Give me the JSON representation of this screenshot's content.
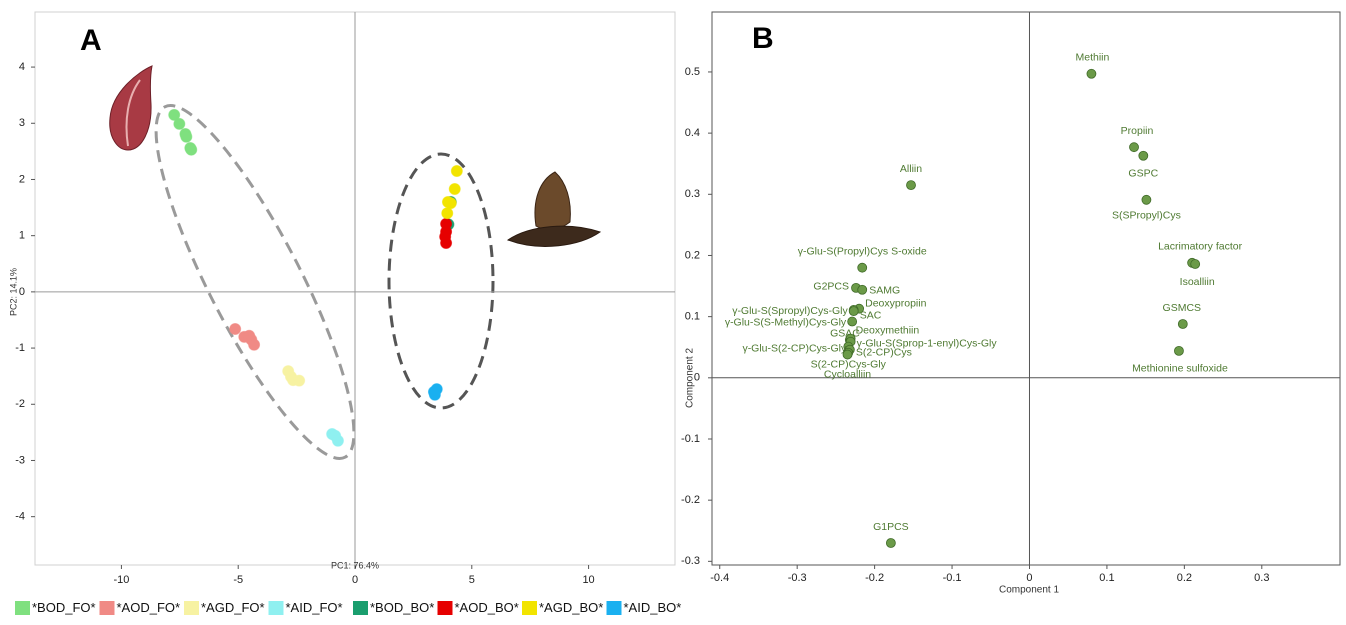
{
  "chart_data": [
    {
      "type": "scatter",
      "panel_label": "A",
      "x_label": "PC1: 76.4%",
      "y_label": "PC2: 14.1%",
      "xlim": [
        -13.7,
        13.7
      ],
      "ylim": [
        -4.86,
        4.98
      ],
      "xticks": [
        -10,
        -5,
        0,
        5,
        10
      ],
      "yticks": [
        -4,
        -3,
        -2,
        -1,
        0,
        1,
        2,
        3,
        4
      ],
      "zero_lines": true,
      "series": [
        {
          "name": "*BOD_FO*",
          "color": "#7fe07f",
          "x": [
            -7.74,
            -7.52,
            -7.26,
            -7.22,
            -7.05,
            -7.01
          ],
          "y": [
            3.15,
            2.99,
            2.81,
            2.76,
            2.56,
            2.53
          ]
        },
        {
          "name": "*AOD_FO*",
          "color": "#f08a85",
          "x": [
            -5.13,
            -4.74,
            -4.53,
            -4.44,
            -4.32
          ],
          "y": [
            -0.66,
            -0.8,
            -0.78,
            -0.85,
            -0.94
          ]
        },
        {
          "name": "*AGD_FO*",
          "color": "#f7f2a2",
          "x": [
            -2.86,
            -2.74,
            -2.65,
            -2.39
          ],
          "y": [
            -1.41,
            -1.51,
            -1.57,
            -1.58
          ]
        },
        {
          "name": "*AID_FO*",
          "color": "#8ff0f0",
          "x": [
            -0.98,
            -0.85,
            -0.73
          ],
          "y": [
            -2.53,
            -2.56,
            -2.65
          ]
        },
        {
          "name": "*BOD_BO*",
          "color": "#1a9e6e",
          "x": [
            4.1,
            4.0
          ],
          "y": [
            1.6,
            1.2
          ]
        },
        {
          "name": "*AOD_BO*",
          "color": "#e60000",
          "x": [
            3.9,
            3.9,
            3.86,
            3.9
          ],
          "y": [
            1.21,
            1.07,
            0.98,
            0.87
          ]
        },
        {
          "name": "*AGD_BO*",
          "color": "#f2e400",
          "x": [
            4.36,
            4.27,
            4.1,
            3.95,
            3.98
          ],
          "y": [
            2.15,
            1.83,
            1.58,
            1.4,
            1.6
          ]
        },
        {
          "name": "*AID_BO*",
          "color": "#1ab0f0",
          "x": [
            3.38,
            3.5,
            3.42
          ],
          "y": [
            -1.78,
            -1.73,
            -1.83
          ]
        }
      ]
    },
    {
      "type": "scatter",
      "panel_label": "B",
      "x_label": "Component 1",
      "y_label": "Component 2",
      "xlim": [
        -0.41,
        0.401
      ],
      "ylim": [
        -0.306,
        0.598
      ],
      "xticks": [
        -0.4,
        -0.3,
        -0.2,
        -0.1,
        0,
        0.1,
        0.2,
        0.3
      ],
      "yticks": [
        -0.3,
        -0.2,
        -0.1,
        0,
        0.1,
        0.2,
        0.3,
        0.4,
        0.5
      ],
      "zero_lines": true,
      "color": "#6b9a48",
      "labels": [
        "Methiin",
        "Propiin",
        "GSPC",
        "S(SPropyl)Cys",
        "Lacrimatory factor",
        "Isoalliin",
        "GSMCS",
        "Methionine sulfoxide",
        "Alliin",
        "γ-Glu-S(Propyl)Cys S-oxide",
        "G2PCS",
        "SAMG",
        "Deoxypropiin",
        "SAC",
        "γ-Glu-S(Spropyl)Cys-Gly",
        "γ-Glu-S(S-Methyl)Cys-Gly",
        "GSAC",
        "Deoxymethiin",
        "γ-Glu-S(Sprop-1-enyl)Cys-Gly",
        "γ-Glu-S(2-CP)Cys-Gly",
        "S(2-CP)Cys",
        "S(2-CP)Cys-Gly",
        "Cycloalliin",
        "G1PCS"
      ],
      "x": [
        0.08,
        0.135,
        0.147,
        0.151,
        0.21,
        0.214,
        0.198,
        0.193,
        -0.153,
        -0.216,
        -0.224,
        -0.216,
        -0.22,
        -0.227,
        -0.227,
        -0.229,
        -0.232,
        -0.231,
        -0.231,
        -0.234,
        -0.232,
        -0.234,
        -0.235,
        -0.179
      ],
      "y": [
        0.497,
        0.377,
        0.363,
        0.291,
        0.188,
        0.186,
        0.088,
        0.044,
        0.315,
        0.18,
        0.147,
        0.144,
        0.113,
        0.111,
        0.109,
        0.092,
        0.062,
        0.064,
        0.059,
        0.051,
        0.046,
        0.041,
        0.038,
        -0.27
      ]
    }
  ]
}
